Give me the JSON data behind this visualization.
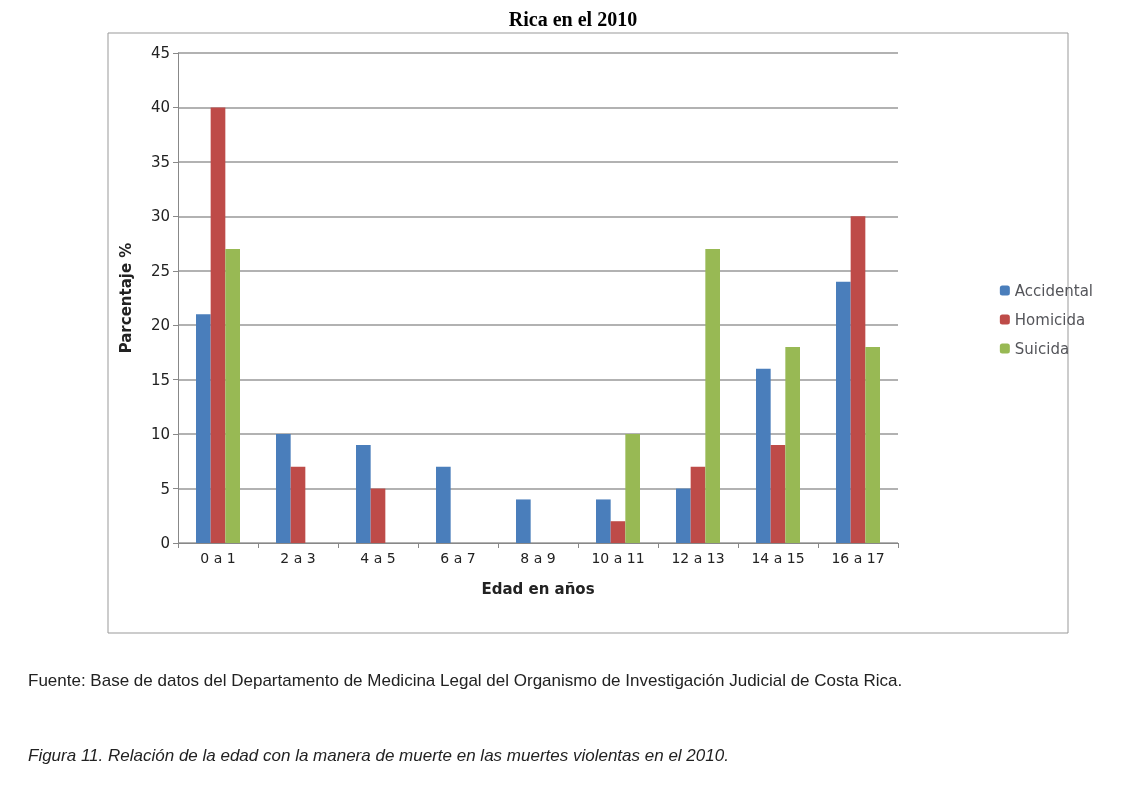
{
  "chart_data": {
    "type": "bar",
    "title": "Rica en el 2010",
    "xlabel": "Edad en años",
    "ylabel": "Parcentaje %",
    "categories": [
      "0 a 1",
      "2 a 3",
      "4 a 5",
      "6 a 7",
      "8 a 9",
      "10 a 11",
      "12 a 13",
      "14 a 15",
      "16 a 17"
    ],
    "series": [
      {
        "name": "Accidental",
        "color": "#4a7ebb",
        "values": [
          21,
          10,
          9,
          7,
          4,
          4,
          5,
          16,
          24
        ]
      },
      {
        "name": "Homicida",
        "color": "#be4b48",
        "values": [
          40,
          7,
          5,
          0,
          0,
          2,
          7,
          9,
          30
        ]
      },
      {
        "name": "Suicida",
        "color": "#98b954",
        "values": [
          27,
          0,
          0,
          0,
          0,
          10,
          27,
          18,
          18
        ]
      }
    ],
    "ylim": [
      0,
      45
    ],
    "yticks": [
      0,
      5,
      10,
      15,
      20,
      25,
      30,
      35,
      40,
      45
    ],
    "grid": "y",
    "legend": "right",
    "annotations": [
      "Fuente: Base de datos del Departamento de Medicina Legal del Organismo de Investigación Judicial de Costa Rica.",
      "Figura 11. Relación de la edad con la manera de muerte en las muertes violentas en el 2010."
    ]
  }
}
